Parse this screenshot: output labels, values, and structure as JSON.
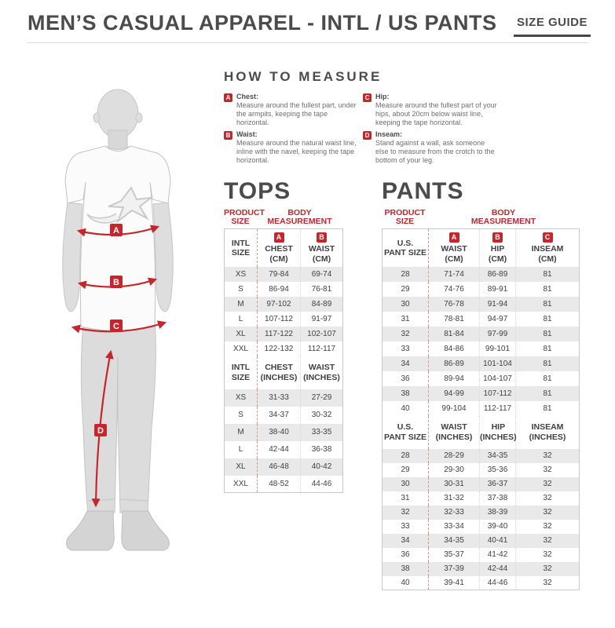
{
  "page": {
    "title": "MEN’S CASUAL APPAREL - INTL / US PANTS",
    "size_guide_label": "SIZE GUIDE"
  },
  "colors": {
    "accent_red": "#c5262c",
    "row_shade": "#e9e9e9",
    "heading_gray": "#4b4b4d"
  },
  "figure": {
    "markers": [
      "A",
      "B",
      "C",
      "D"
    ]
  },
  "how_to_measure": {
    "heading": "HOW TO MEASURE",
    "items": [
      {
        "badge": "A",
        "label": "Chest:",
        "text": "Measure around the fullest part, under the armpits, keeping the tape horizontal."
      },
      {
        "badge": "B",
        "label": "Waist:",
        "text": "Measure around the natural waist line, inline with the navel, keeping the tape horizontal."
      },
      {
        "badge": "C",
        "label": "Hip:",
        "text": "Measure around the fullest part of your hips, about 20cm below waist line, keeping the tape horizontal."
      },
      {
        "badge": "D",
        "label": "Inseam:",
        "text": "Stand against a wall, ask someone else to measure from the crotch to the bottom of your leg."
      }
    ]
  },
  "tops": {
    "title": "TOPS",
    "product_size_label": "PRODUCT\nSIZE",
    "body_measurement_label": "BODY\nMEASUREMENT",
    "sections": [
      {
        "size_header": "INTL\nSIZE",
        "columns": [
          {
            "badge": "A",
            "label": "CHEST\n(CM)"
          },
          {
            "badge": "B",
            "label": "WAIST\n(CM)"
          }
        ],
        "rows": [
          [
            "XS",
            "79-84",
            "69-74"
          ],
          [
            "S",
            "86-94",
            "76-81"
          ],
          [
            "M",
            "97-102",
            "84-89"
          ],
          [
            "L",
            "107-112",
            "91-97"
          ],
          [
            "XL",
            "117-122",
            "102-107"
          ],
          [
            "XXL",
            "122-132",
            "112-117"
          ]
        ]
      },
      {
        "size_header": "INTL\nSIZE",
        "columns": [
          {
            "label": "CHEST\n(INCHES)"
          },
          {
            "label": "WAIST\n(INCHES)"
          }
        ],
        "rows": [
          [
            "XS",
            "31-33",
            "27-29"
          ],
          [
            "S",
            "34-37",
            "30-32"
          ],
          [
            "M",
            "38-40",
            "33-35"
          ],
          [
            "L",
            "42-44",
            "36-38"
          ],
          [
            "XL",
            "46-48",
            "40-42"
          ],
          [
            "XXL",
            "48-52",
            "44-46"
          ]
        ]
      }
    ]
  },
  "pants": {
    "title": "PANTS",
    "product_size_label": "PRODUCT\nSIZE",
    "body_measurement_label": "BODY\nMEASUREMENT",
    "sections": [
      {
        "size_header": "U.S.\nPANT SIZE",
        "columns": [
          {
            "badge": "A",
            "label": "WAIST\n(CM)"
          },
          {
            "badge": "B",
            "label": "HIP\n(CM)"
          },
          {
            "badge": "C",
            "label": "INSEAM\n(CM)"
          }
        ],
        "rows": [
          [
            "28",
            "71-74",
            "86-89",
            "81"
          ],
          [
            "29",
            "74-76",
            "89-91",
            "81"
          ],
          [
            "30",
            "76-78",
            "91-94",
            "81"
          ],
          [
            "31",
            "78-81",
            "94-97",
            "81"
          ],
          [
            "32",
            "81-84",
            "97-99",
            "81"
          ],
          [
            "33",
            "84-86",
            "99-101",
            "81"
          ],
          [
            "34",
            "86-89",
            "101-104",
            "81"
          ],
          [
            "36",
            "89-94",
            "104-107",
            "81"
          ],
          [
            "38",
            "94-99",
            "107-112",
            "81"
          ],
          [
            "40",
            "99-104",
            "112-117",
            "81"
          ]
        ]
      },
      {
        "size_header": "U.S.\nPANT SIZE",
        "columns": [
          {
            "label": "WAIST\n(INCHES)"
          },
          {
            "label": "HIP\n(INCHES)"
          },
          {
            "label": "INSEAM\n(INCHES)"
          }
        ],
        "rows": [
          [
            "28",
            "28-29",
            "34-35",
            "32"
          ],
          [
            "29",
            "29-30",
            "35-36",
            "32"
          ],
          [
            "30",
            "30-31",
            "36-37",
            "32"
          ],
          [
            "31",
            "31-32",
            "37-38",
            "32"
          ],
          [
            "32",
            "32-33",
            "38-39",
            "32"
          ],
          [
            "33",
            "33-34",
            "39-40",
            "32"
          ],
          [
            "34",
            "34-35",
            "40-41",
            "32"
          ],
          [
            "36",
            "35-37",
            "41-42",
            "32"
          ],
          [
            "38",
            "37-39",
            "42-44",
            "32"
          ],
          [
            "40",
            "39-41",
            "44-46",
            "32"
          ]
        ]
      }
    ]
  }
}
